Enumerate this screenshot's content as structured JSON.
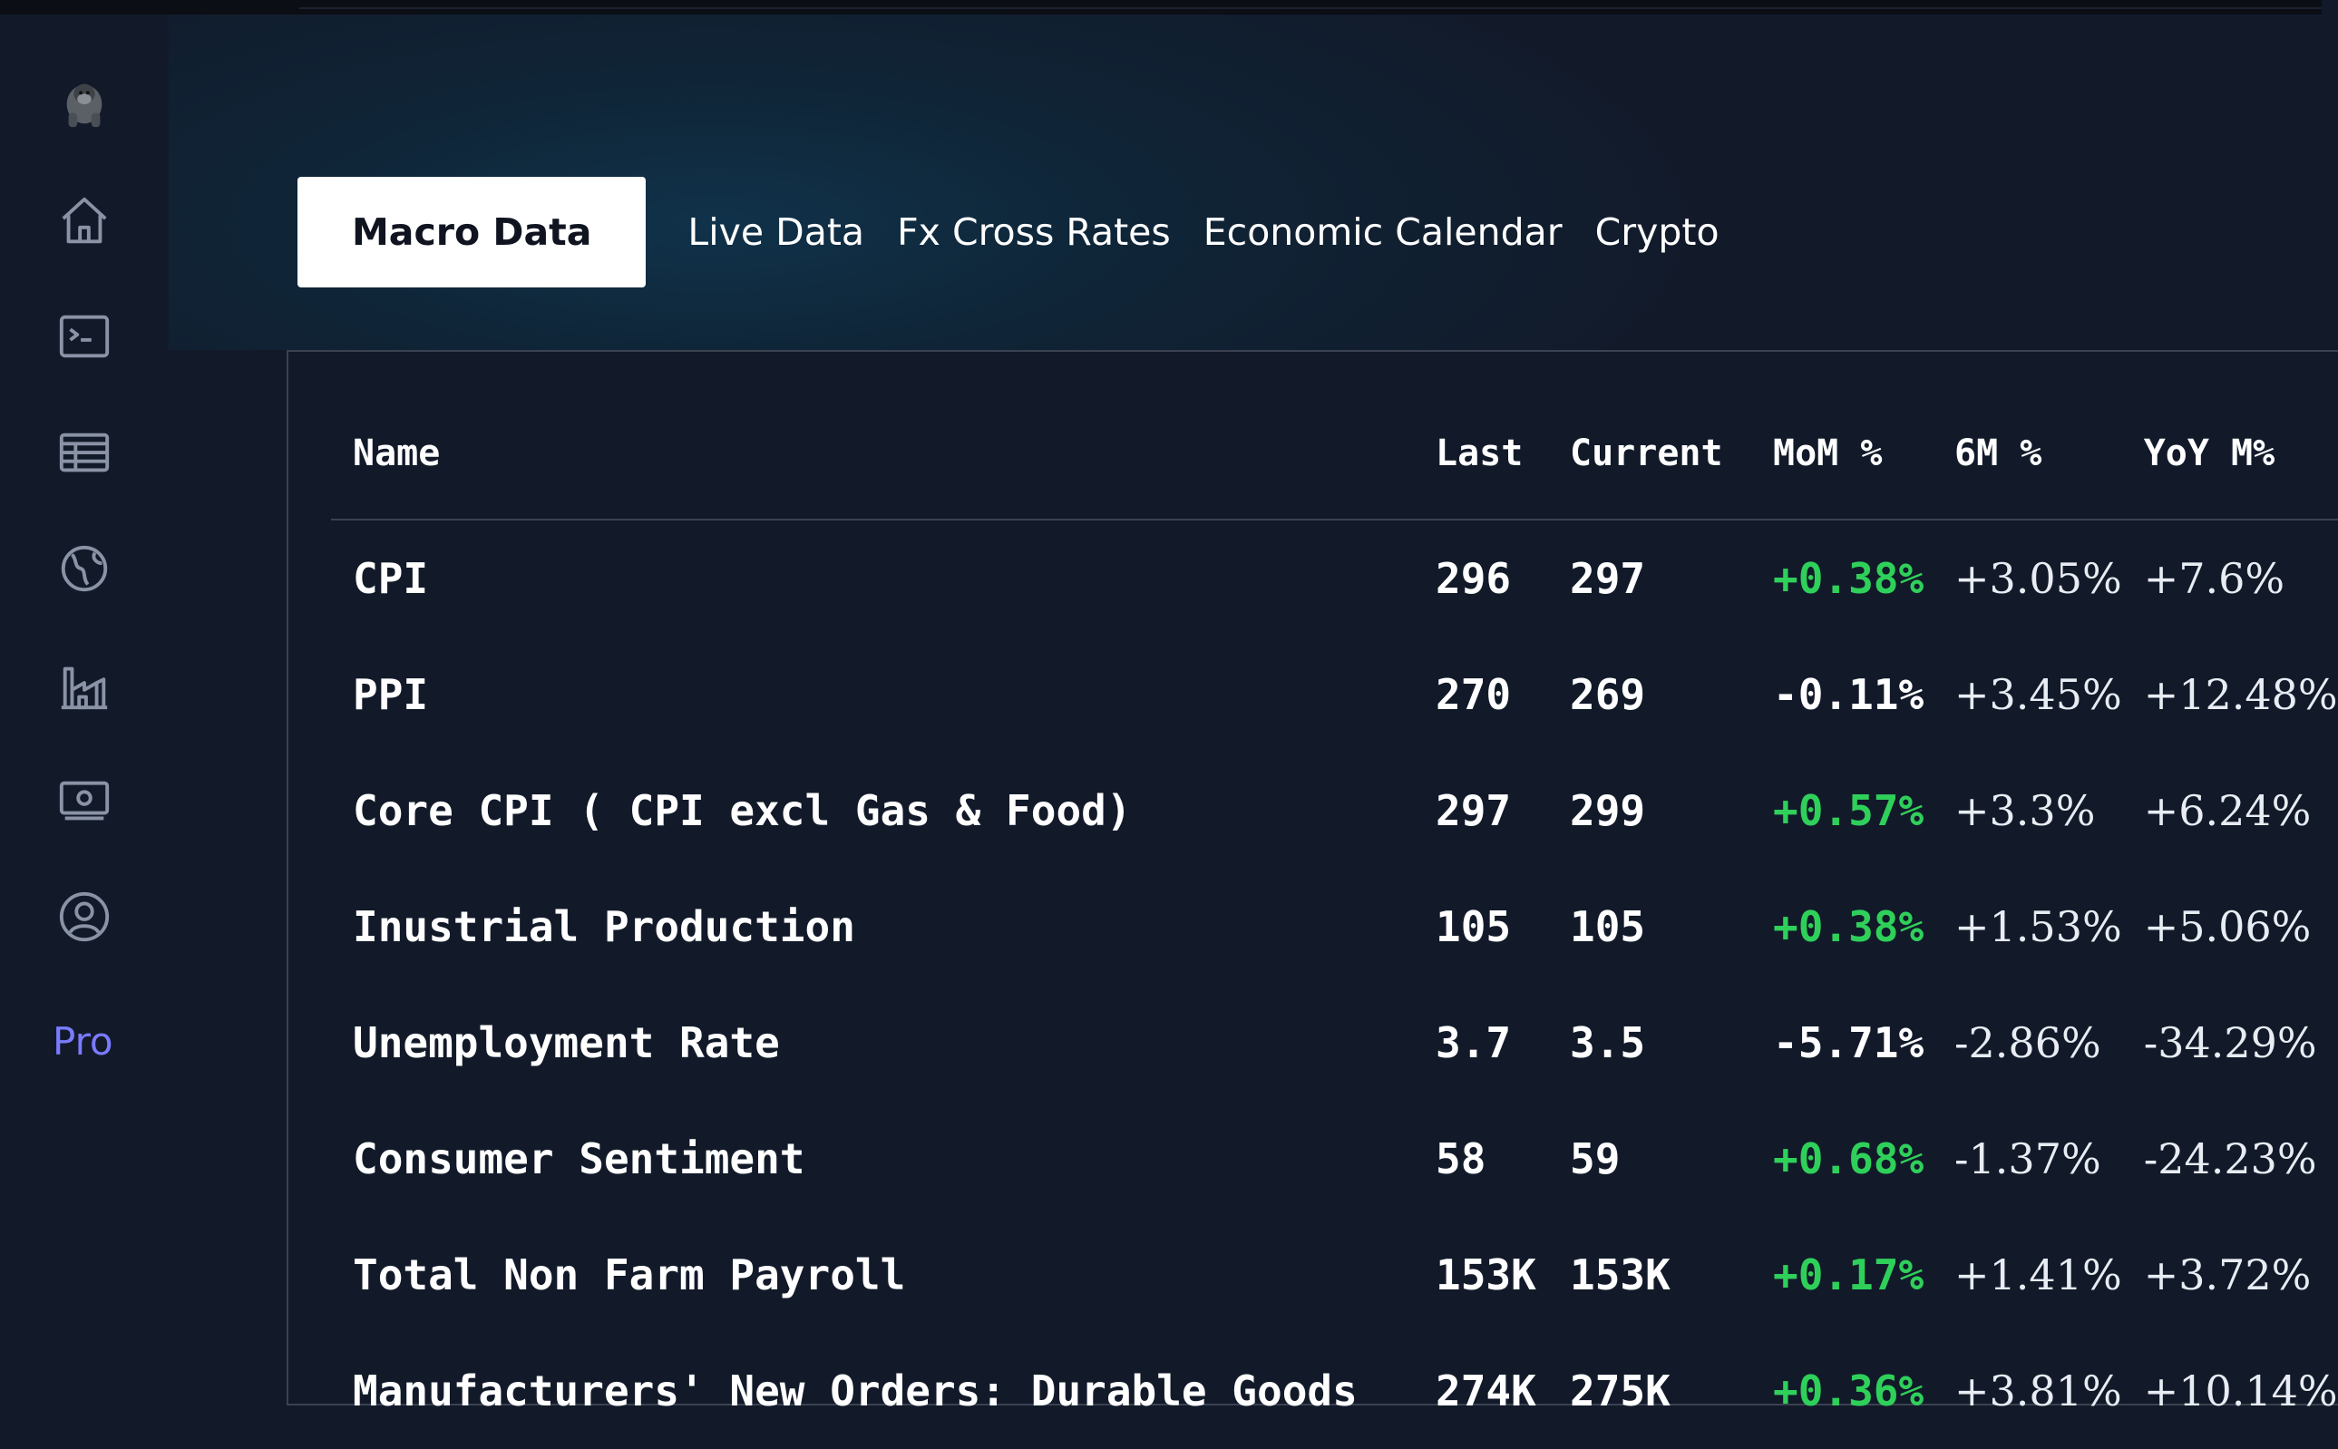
{
  "sidebar": {
    "logo": "gorilla-logo",
    "items": [
      {
        "name": "home",
        "icon": "home-icon"
      },
      {
        "name": "terminal",
        "icon": "terminal-icon"
      },
      {
        "name": "table",
        "icon": "table-icon"
      },
      {
        "name": "globe",
        "icon": "globe-icon"
      },
      {
        "name": "factory",
        "icon": "factory-icon"
      },
      {
        "name": "money",
        "icon": "money-icon"
      },
      {
        "name": "account",
        "icon": "user-circle-icon"
      }
    ],
    "pro_label": "Pro"
  },
  "tabs": [
    {
      "label": "Macro Data",
      "active": true
    },
    {
      "label": "Live Data",
      "active": false
    },
    {
      "label": "Fx Cross Rates",
      "active": false
    },
    {
      "label": "Economic Calendar",
      "active": false
    },
    {
      "label": "Crypto",
      "active": false
    }
  ],
  "table": {
    "headers": {
      "name": "Name",
      "last": "Last",
      "current": "Current",
      "mom": "MoM %",
      "six_m": "6M %",
      "yoy": "YoY M%"
    },
    "rows": [
      {
        "name": "CPI",
        "last": "296",
        "current": "297",
        "mom": "+0.38%",
        "mom_dir": "pos",
        "six_m": "+3.05%",
        "yoy": "+7.6%"
      },
      {
        "name": "PPI",
        "last": "270",
        "current": "269",
        "mom": "-0.11%",
        "mom_dir": "neg",
        "six_m": "+3.45%",
        "yoy": "+12.48%"
      },
      {
        "name": "Core CPI ( CPI excl Gas & Food)",
        "last": "297",
        "current": "299",
        "mom": "+0.57%",
        "mom_dir": "pos",
        "six_m": "+3.3%",
        "yoy": "+6.24%"
      },
      {
        "name": "Inustrial Production",
        "last": "105",
        "current": "105",
        "mom": "+0.38%",
        "mom_dir": "pos",
        "six_m": "+1.53%",
        "yoy": "+5.06%"
      },
      {
        "name": "Unemployment Rate",
        "last": "3.7",
        "current": "3.5",
        "mom": "-5.71%",
        "mom_dir": "neg",
        "six_m": "-2.86%",
        "yoy": "-34.29%"
      },
      {
        "name": "Consumer Sentiment",
        "last": "58",
        "current": "59",
        "mom": "+0.68%",
        "mom_dir": "pos",
        "six_m": "-1.37%",
        "yoy": "-24.23%"
      },
      {
        "name": "Total Non Farm Payroll",
        "last": "153K",
        "current": "153K",
        "mom": "+0.17%",
        "mom_dir": "pos",
        "six_m": "+1.41%",
        "yoy": "+3.72%"
      },
      {
        "name": "Manufacturers' New Orders: Durable Goods",
        "last": "274K",
        "current": "275K",
        "mom": "+0.36%",
        "mom_dir": "pos",
        "six_m": "+3.81%",
        "yoy": "+10.14%"
      }
    ]
  },
  "colors": {
    "background": "#121a2a",
    "positive": "#2fd05a",
    "accent_pro": "#7b7bff",
    "active_tab_bg": "#ffffff"
  }
}
